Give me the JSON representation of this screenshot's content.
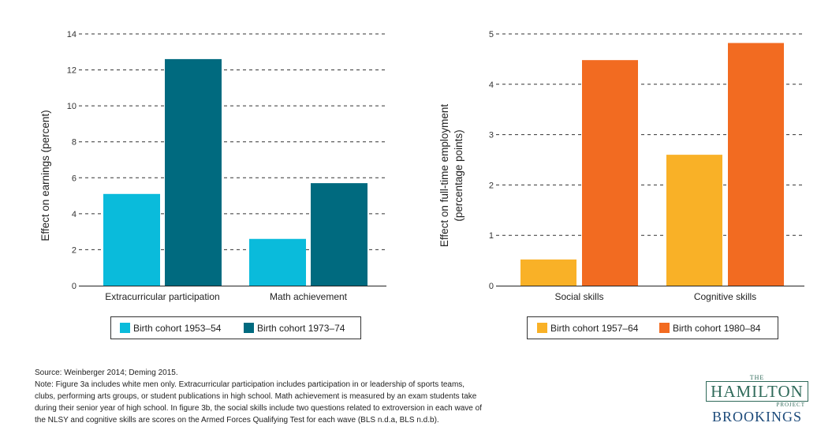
{
  "chart_data": [
    {
      "type": "bar",
      "ylabel": "Effect on earnings (percent)",
      "ylim": [
        0,
        14
      ],
      "yticks": [
        "0",
        "2",
        "4",
        "6",
        "8",
        "10",
        "12",
        "14"
      ],
      "categories": [
        "Extracurricular participation",
        "Math achievement"
      ],
      "series": [
        {
          "name": "Birth cohort 1953–54",
          "color": "#0abbdb",
          "values": [
            5.1,
            2.6
          ]
        },
        {
          "name": "Birth cohort 1973–74",
          "color": "#006a7f",
          "values": [
            12.6,
            5.7
          ]
        }
      ],
      "grid": true
    },
    {
      "type": "bar",
      "ylabel_lines": [
        "Effect on full-time employment",
        "(percentage points)"
      ],
      "ylim": [
        0,
        5
      ],
      "yticks": [
        "0",
        "1",
        "2",
        "3",
        "4",
        "5"
      ],
      "categories": [
        "Social skills",
        "Cognitive skills"
      ],
      "series": [
        {
          "name": "Birth cohort 1957–64",
          "color": "#f9b127",
          "values": [
            0.52,
            2.6
          ]
        },
        {
          "name": "Birth cohort 1980–84",
          "color": "#f26b21",
          "values": [
            4.48,
            4.82
          ]
        }
      ],
      "grid": true
    }
  ],
  "notes": {
    "source": "Source: Weinberger 2014; Deming 2015.",
    "lines": [
      "Note: Figure 3a includes white men only. Extracurricular participation includes participation in or leadership of sports teams,",
      "clubs, performing arts groups, or student publications in high school. Math achievement is measured by an exam students take",
      "during their senior year of high school. In figure 3b, the social skills include two questions related to extroversion in each wave of",
      "the NLSY and cognitive skills are scores on the Armed Forces Qualifying Test for each wave (BLS n.d.a, BLS n.d.b)."
    ]
  },
  "logo": {
    "the": "THE",
    "hamilton": "HAMILTON",
    "project": "PROJECT",
    "brookings": "BROOKINGS"
  }
}
